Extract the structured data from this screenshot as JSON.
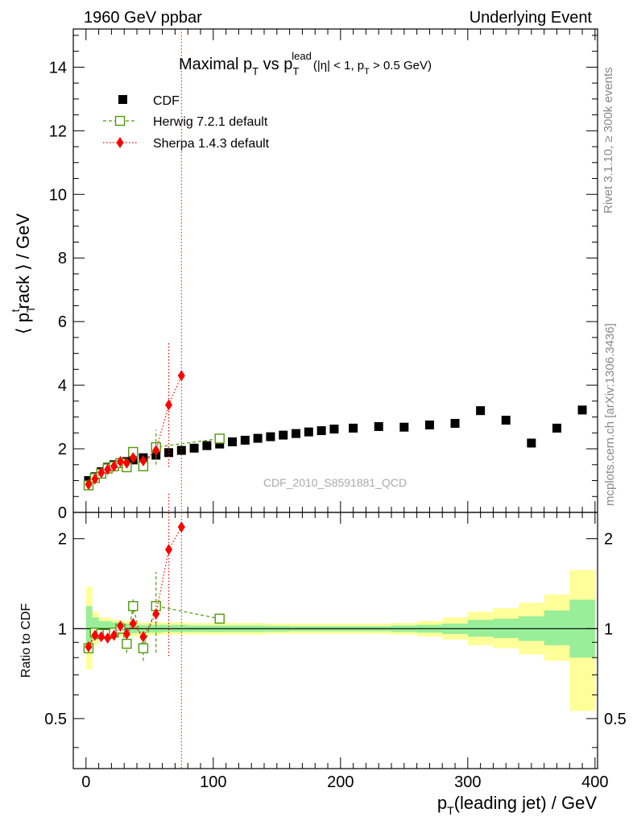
{
  "header": {
    "left": "1960 GeV ppbar",
    "right": "Underlying Event"
  },
  "side_labels": {
    "rivet": "Rivet 3.1.10, ≥ 300k events",
    "mcplots": "mcplots.cern.ch [arXiv:1306.3436]"
  },
  "watermark": "CDF_2010_S8591881_QCD",
  "chart_data": [
    {
      "type": "scatter",
      "title_main": "Maximal p",
      "title_sub_T": "T",
      "title_vs": " vs p",
      "title_sup_lead": "lead",
      "title_tail": "(|η| < 1, p",
      "title_tail_end": " > 0.5 GeV)",
      "ylabel_main": "⟨ p",
      "ylabel_sup": "t",
      "ylabel_sub": "T",
      "ylabel_tail": "rack ⟩ / GeV",
      "xlim": [
        -10,
        402
      ],
      "ylim": [
        0,
        15.2
      ],
      "yticks": [
        "0",
        "2",
        "4",
        "6",
        "8",
        "10",
        "12",
        "14"
      ],
      "legend_position": "top-left",
      "vertical_line_x": 75,
      "series": [
        {
          "name": "CDF",
          "color": "#000000",
          "marker": "square",
          "points": [
            [
              2,
              1.0
            ],
            [
              7,
              1.12
            ],
            [
              12,
              1.28
            ],
            [
              17,
              1.42
            ],
            [
              22,
              1.5
            ],
            [
              27,
              1.55
            ],
            [
              32,
              1.6
            ],
            [
              37,
              1.65
            ],
            [
              45,
              1.72
            ],
            [
              55,
              1.8
            ],
            [
              65,
              1.88
            ],
            [
              75,
              1.95
            ],
            [
              85,
              2.02
            ],
            [
              95,
              2.1
            ],
            [
              105,
              2.15
            ],
            [
              115,
              2.22
            ],
            [
              125,
              2.27
            ],
            [
              135,
              2.33
            ],
            [
              145,
              2.38
            ],
            [
              155,
              2.43
            ],
            [
              165,
              2.48
            ],
            [
              175,
              2.53
            ],
            [
              185,
              2.57
            ],
            [
              195,
              2.62
            ],
            [
              210,
              2.65
            ],
            [
              230,
              2.7
            ],
            [
              250,
              2.68
            ],
            [
              270,
              2.75
            ],
            [
              290,
              2.8
            ],
            [
              310,
              3.2
            ],
            [
              330,
              2.9
            ],
            [
              350,
              2.18
            ],
            [
              370,
              2.65
            ],
            [
              390,
              3.22
            ]
          ]
        },
        {
          "name": "Herwig 7.2.1 default",
          "color": "#4e9a06",
          "marker": "open-square",
          "points": [
            [
              2,
              0.85
            ],
            [
              7,
              1.08
            ],
            [
              12,
              1.22
            ],
            [
              17,
              1.38
            ],
            [
              22,
              1.45
            ],
            [
              27,
              1.55
            ],
            [
              32,
              1.42
            ],
            [
              37,
              1.9
            ],
            [
              45,
              1.45
            ],
            [
              55,
              2.05
            ],
            [
              105,
              2.32
            ]
          ],
          "errors": [
            0,
            0,
            0,
            0,
            0,
            0,
            0.1,
            0.15,
            0.15,
            0.55,
            0
          ],
          "ratio": [
            0.86,
            0.97,
            0.96,
            0.96,
            0.97,
            1.0,
            0.89,
            1.19,
            0.86,
            1.19,
            1.08
          ],
          "ratio_errors": [
            0,
            0,
            0,
            0,
            0,
            0,
            0.06,
            0.07,
            0.08,
            0.36,
            0
          ]
        },
        {
          "name": "Sherpa 1.4.3 default",
          "color": "#ff0000",
          "marker": "diamond",
          "points": [
            [
              2,
              0.88
            ],
            [
              7,
              1.05
            ],
            [
              12,
              1.25
            ],
            [
              17,
              1.35
            ],
            [
              22,
              1.45
            ],
            [
              27,
              1.6
            ],
            [
              32,
              1.55
            ],
            [
              37,
              1.72
            ],
            [
              45,
              1.62
            ],
            [
              55,
              1.95
            ],
            [
              65,
              3.38
            ],
            [
              75,
              4.3
            ]
          ],
          "errors": [
            0,
            0,
            0,
            0,
            0,
            0,
            0,
            0,
            0,
            0.22,
            1.95,
            0
          ],
          "ratio": [
            0.87,
            0.95,
            0.94,
            0.93,
            0.95,
            1.02,
            0.96,
            1.04,
            0.94,
            1.12,
            1.84,
            2.19
          ],
          "ratio_errors": [
            0,
            0,
            0,
            0,
            0,
            0,
            0,
            0,
            0,
            0.1,
            1.03,
            0
          ]
        }
      ]
    },
    {
      "type": "area",
      "ylabel": "Ratio to CDF",
      "xlabel_main": "p",
      "xlabel_sub": "T",
      "xlabel_tail": "(leading jet) / GeV",
      "xticks": [
        "0",
        "100",
        "200",
        "300",
        "400"
      ],
      "yticks": [
        "0.5",
        "1",
        "2"
      ],
      "ylim": [
        0.34,
        2.45
      ],
      "bands": {
        "edges": [
          0,
          5,
          10,
          20,
          30,
          40,
          60,
          80,
          100,
          120,
          140,
          160,
          180,
          200,
          220,
          240,
          260,
          280,
          300,
          320,
          340,
          360,
          380,
          400
        ],
        "green_lo": [
          0.83,
          0.92,
          0.95,
          0.96,
          0.965,
          0.97,
          0.975,
          0.975,
          0.975,
          0.975,
          0.978,
          0.98,
          0.98,
          0.98,
          0.98,
          0.975,
          0.97,
          0.96,
          0.94,
          0.93,
          0.91,
          0.88,
          0.8
        ],
        "green_hi": [
          1.19,
          1.09,
          1.06,
          1.05,
          1.04,
          1.03,
          1.03,
          1.025,
          1.025,
          1.025,
          1.022,
          1.02,
          1.02,
          1.02,
          1.02,
          1.025,
          1.03,
          1.04,
          1.07,
          1.08,
          1.1,
          1.15,
          1.25
        ],
        "yellow_lo": [
          0.73,
          0.88,
          0.92,
          0.94,
          0.94,
          0.95,
          0.955,
          0.955,
          0.955,
          0.955,
          0.96,
          0.96,
          0.96,
          0.96,
          0.96,
          0.955,
          0.94,
          0.92,
          0.88,
          0.86,
          0.82,
          0.78,
          0.53
        ],
        "yellow_hi": [
          1.38,
          1.14,
          1.09,
          1.07,
          1.06,
          1.05,
          1.05,
          1.045,
          1.045,
          1.045,
          1.04,
          1.04,
          1.04,
          1.04,
          1.04,
          1.045,
          1.06,
          1.09,
          1.14,
          1.17,
          1.22,
          1.3,
          1.57
        ]
      }
    }
  ]
}
